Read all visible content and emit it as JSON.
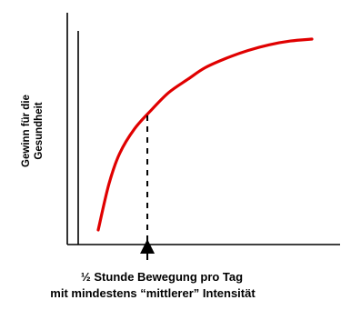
{
  "chart_data": {
    "type": "line",
    "title": "",
    "xlabel_lines": [
      "½ Stunde Bewegung pro Tag",
      "mit mindestens “mittlerer” Intensität"
    ],
    "ylabel_lines": [
      "Gewinn für die",
      "Gesundheit"
    ],
    "ticks_shown": false,
    "grid": false,
    "legend": "none",
    "series": [
      {
        "color": "#e00000",
        "x": [
          0.0,
          0.05,
          0.1,
          0.17,
          0.25,
          0.33,
          0.42,
          0.5,
          0.6,
          0.7,
          0.8,
          0.9,
          1.0
        ],
        "y": [
          0.0,
          0.24,
          0.4,
          0.53,
          0.63,
          0.72,
          0.79,
          0.85,
          0.9,
          0.94,
          0.97,
          0.99,
          1.0
        ]
      }
    ],
    "marker": {
      "x": 0.23,
      "style": "dashed",
      "color": "#000000",
      "arrow": "up"
    }
  }
}
